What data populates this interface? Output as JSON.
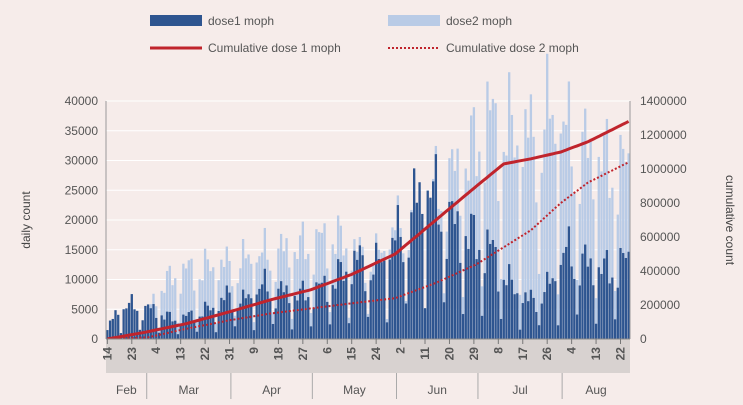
{
  "chart_data": {
    "type": "bar",
    "legend": {
      "position": "top",
      "items": [
        {
          "label": "dose1 moph",
          "kind": "bar",
          "color": "#2e5590"
        },
        {
          "label": "dose2 moph",
          "kind": "bar",
          "color": "#b9cbe6"
        },
        {
          "label": "Cumulative dose 1 moph",
          "kind": "line",
          "color": "#c0242c"
        },
        {
          "label": "Cumulative dose 2 moph",
          "kind": "dotted-line",
          "color": "#c0242c"
        }
      ]
    },
    "ylabel": "daily count",
    "y2label": "cumulative count",
    "ylim": [
      0,
      40000
    ],
    "y2lim": [
      0,
      1400000
    ],
    "yticks": [
      0,
      5000,
      10000,
      15000,
      20000,
      25000,
      30000,
      35000,
      40000
    ],
    "y2ticks": [
      0,
      200000,
      400000,
      600000,
      800000,
      1000000,
      1200000,
      1400000
    ],
    "x_start": "2021-02-14",
    "x_end": "2021-08-25",
    "xticks": [
      {
        "date": "2021-02-14",
        "label": "14"
      },
      {
        "date": "2021-02-23",
        "label": "23"
      },
      {
        "date": "2021-03-04",
        "label": "4"
      },
      {
        "date": "2021-03-13",
        "label": "13"
      },
      {
        "date": "2021-03-22",
        "label": "22"
      },
      {
        "date": "2021-03-31",
        "label": "31"
      },
      {
        "date": "2021-04-09",
        "label": "9"
      },
      {
        "date": "2021-04-18",
        "label": "18"
      },
      {
        "date": "2021-04-27",
        "label": "27"
      },
      {
        "date": "2021-05-06",
        "label": "6"
      },
      {
        "date": "2021-05-15",
        "label": "15"
      },
      {
        "date": "2021-05-24",
        "label": "24"
      },
      {
        "date": "2021-06-02",
        "label": "2"
      },
      {
        "date": "2021-06-11",
        "label": "11"
      },
      {
        "date": "2021-06-20",
        "label": "20"
      },
      {
        "date": "2021-06-29",
        "label": "29"
      },
      {
        "date": "2021-07-08",
        "label": "8"
      },
      {
        "date": "2021-07-17",
        "label": "17"
      },
      {
        "date": "2021-07-26",
        "label": "26"
      },
      {
        "date": "2021-08-04",
        "label": "4"
      },
      {
        "date": "2021-08-13",
        "label": "13"
      },
      {
        "date": "2021-08-22",
        "label": "22"
      }
    ],
    "months": [
      {
        "label": "Feb",
        "start": "2021-02-14",
        "end": "2021-02-28"
      },
      {
        "label": "Mar",
        "start": "2021-03-01",
        "end": "2021-03-31"
      },
      {
        "label": "Apr",
        "start": "2021-04-01",
        "end": "2021-04-30"
      },
      {
        "label": "May",
        "start": "2021-05-01",
        "end": "2021-05-31"
      },
      {
        "label": "Jun",
        "start": "2021-06-01",
        "end": "2021-06-30"
      },
      {
        "label": "Jul",
        "start": "2021-07-01",
        "end": "2021-07-31"
      },
      {
        "label": "Aug",
        "start": "2021-08-01",
        "end": "2021-08-25"
      }
    ],
    "dose1_daily_anchors": [
      [
        "2021-02-14",
        1500
      ],
      [
        "2021-02-17",
        4000
      ],
      [
        "2021-02-21",
        5500
      ],
      [
        "2021-02-27",
        5000
      ],
      [
        "2021-03-04",
        4500
      ],
      [
        "2021-03-11",
        3000
      ],
      [
        "2021-03-18",
        4000
      ],
      [
        "2021-03-25",
        5000
      ],
      [
        "2021-03-31",
        7000
      ],
      [
        "2021-04-05",
        6000
      ],
      [
        "2021-04-12",
        8500
      ],
      [
        "2021-04-19",
        7500
      ],
      [
        "2021-04-26",
        7000
      ],
      [
        "2021-05-03",
        8000
      ],
      [
        "2021-05-10",
        10000
      ],
      [
        "2021-05-17",
        12500
      ],
      [
        "2021-05-24",
        11500
      ],
      [
        "2021-05-30",
        15000
      ],
      [
        "2021-06-05",
        19000
      ],
      [
        "2021-06-11",
        25000
      ],
      [
        "2021-06-17",
        21000
      ],
      [
        "2021-06-22",
        18000
      ],
      [
        "2021-06-29",
        16000
      ],
      [
        "2021-07-06",
        14000
      ],
      [
        "2021-07-12",
        9000
      ],
      [
        "2021-07-19",
        6000
      ],
      [
        "2021-07-26",
        8000
      ],
      [
        "2021-08-02",
        14000
      ],
      [
        "2021-08-09",
        12000
      ],
      [
        "2021-08-16",
        11000
      ],
      [
        "2021-08-25",
        12500
      ]
    ],
    "dose2_daily_anchors": [
      [
        "2021-02-14",
        0
      ],
      [
        "2021-02-24",
        1000
      ],
      [
        "2021-03-07",
        9000
      ],
      [
        "2021-03-15",
        11000
      ],
      [
        "2021-03-24",
        11500
      ],
      [
        "2021-04-02",
        12000
      ],
      [
        "2021-04-11",
        13500
      ],
      [
        "2021-04-20",
        14000
      ],
      [
        "2021-04-29",
        15000
      ],
      [
        "2021-05-08",
        16500
      ],
      [
        "2021-05-16",
        14000
      ],
      [
        "2021-05-24",
        13000
      ],
      [
        "2021-06-01",
        18000
      ],
      [
        "2021-06-09",
        22000
      ],
      [
        "2021-06-18",
        25000
      ],
      [
        "2021-06-26",
        28000
      ],
      [
        "2021-07-04",
        35000
      ],
      [
        "2021-07-12",
        33000
      ],
      [
        "2021-07-20",
        32000
      ],
      [
        "2021-07-28",
        36000
      ],
      [
        "2021-08-05",
        31000
      ],
      [
        "2021-08-13",
        29000
      ],
      [
        "2021-08-25",
        27000
      ]
    ],
    "cum_dose1_anchors": [
      [
        "2021-02-14",
        0
      ],
      [
        "2021-02-28",
        40000
      ],
      [
        "2021-03-15",
        90000
      ],
      [
        "2021-03-31",
        160000
      ],
      [
        "2021-04-15",
        230000
      ],
      [
        "2021-04-30",
        290000
      ],
      [
        "2021-05-15",
        380000
      ],
      [
        "2021-05-31",
        500000
      ],
      [
        "2021-06-15",
        700000
      ],
      [
        "2021-06-30",
        900000
      ],
      [
        "2021-07-10",
        1030000
      ],
      [
        "2021-07-20",
        1060000
      ],
      [
        "2021-07-31",
        1100000
      ],
      [
        "2021-08-10",
        1160000
      ],
      [
        "2021-08-25",
        1280000
      ]
    ],
    "cum_dose2_anchors": [
      [
        "2021-02-14",
        0
      ],
      [
        "2021-03-01",
        10000
      ],
      [
        "2021-03-15",
        60000
      ],
      [
        "2021-03-31",
        110000
      ],
      [
        "2021-04-15",
        150000
      ],
      [
        "2021-04-30",
        180000
      ],
      [
        "2021-05-15",
        210000
      ],
      [
        "2021-05-31",
        240000
      ],
      [
        "2021-06-15",
        330000
      ],
      [
        "2021-06-30",
        440000
      ],
      [
        "2021-07-10",
        540000
      ],
      [
        "2021-07-20",
        640000
      ],
      [
        "2021-07-31",
        800000
      ],
      [
        "2021-08-10",
        920000
      ],
      [
        "2021-08-25",
        1040000
      ]
    ]
  }
}
